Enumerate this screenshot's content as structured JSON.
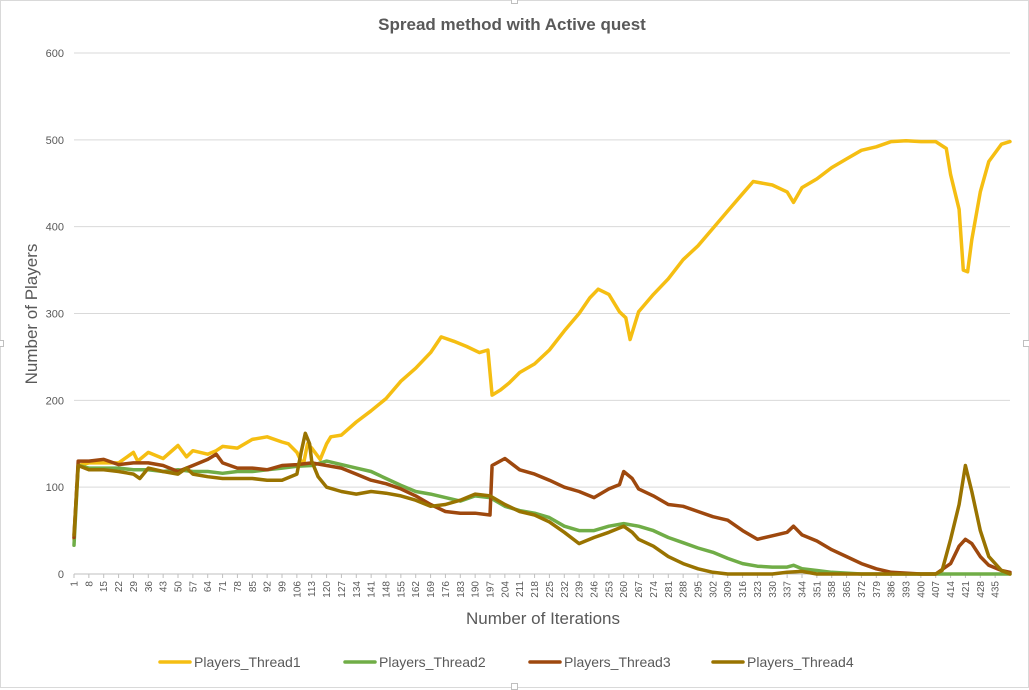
{
  "chart_data": {
    "type": "line",
    "title": "Spread method with Active quest",
    "xlabel": "Number of Iterations",
    "ylabel": "Number of Players",
    "ylim": [
      0,
      600
    ],
    "yticks": [
      0,
      100,
      200,
      300,
      400,
      500,
      600
    ],
    "xlim": [
      1,
      442
    ],
    "xticks": [
      1,
      8,
      15,
      22,
      29,
      36,
      43,
      50,
      57,
      64,
      71,
      78,
      85,
      92,
      99,
      106,
      113,
      120,
      127,
      134,
      141,
      148,
      155,
      162,
      169,
      176,
      183,
      190,
      197,
      204,
      211,
      218,
      225,
      232,
      239,
      246,
      253,
      260,
      267,
      274,
      281,
      288,
      295,
      302,
      309,
      316,
      323,
      330,
      337,
      344,
      351,
      358,
      365,
      372,
      379,
      386,
      393,
      400,
      407,
      414,
      421,
      428,
      435
    ],
    "grid": "horizontal",
    "legend": "bottom",
    "series": [
      {
        "name": "Players_Thread1",
        "color": "#F5BE12",
        "points": [
          [
            1,
            40
          ],
          [
            3,
            125
          ],
          [
            8,
            128
          ],
          [
            22,
            128
          ],
          [
            29,
            140
          ],
          [
            31,
            130
          ],
          [
            36,
            140
          ],
          [
            43,
            133
          ],
          [
            50,
            148
          ],
          [
            54,
            135
          ],
          [
            57,
            142
          ],
          [
            64,
            138
          ],
          [
            68,
            142
          ],
          [
            71,
            147
          ],
          [
            78,
            145
          ],
          [
            85,
            155
          ],
          [
            92,
            158
          ],
          [
            99,
            152
          ],
          [
            102,
            150
          ],
          [
            106,
            140
          ],
          [
            109,
            125
          ],
          [
            111,
            150
          ],
          [
            113,
            145
          ],
          [
            117,
            132
          ],
          [
            120,
            150
          ],
          [
            122,
            158
          ],
          [
            127,
            160
          ],
          [
            134,
            175
          ],
          [
            141,
            188
          ],
          [
            148,
            202
          ],
          [
            155,
            222
          ],
          [
            162,
            237
          ],
          [
            169,
            255
          ],
          [
            174,
            273
          ],
          [
            180,
            268
          ],
          [
            186,
            262
          ],
          [
            192,
            255
          ],
          [
            196,
            258
          ],
          [
            198,
            206
          ],
          [
            202,
            212
          ],
          [
            206,
            220
          ],
          [
            211,
            232
          ],
          [
            218,
            242
          ],
          [
            225,
            258
          ],
          [
            232,
            280
          ],
          [
            239,
            300
          ],
          [
            244,
            318
          ],
          [
            248,
            328
          ],
          [
            253,
            322
          ],
          [
            258,
            302
          ],
          [
            261,
            295
          ],
          [
            263,
            270
          ],
          [
            267,
            302
          ],
          [
            274,
            322
          ],
          [
            281,
            340
          ],
          [
            288,
            362
          ],
          [
            295,
            378
          ],
          [
            302,
            398
          ],
          [
            309,
            418
          ],
          [
            316,
            438
          ],
          [
            321,
            452
          ],
          [
            330,
            448
          ],
          [
            337,
            440
          ],
          [
            340,
            428
          ],
          [
            344,
            445
          ],
          [
            351,
            455
          ],
          [
            358,
            468
          ],
          [
            365,
            478
          ],
          [
            372,
            488
          ],
          [
            379,
            492
          ],
          [
            386,
            498
          ],
          [
            393,
            499
          ],
          [
            400,
            498
          ],
          [
            407,
            498
          ],
          [
            412,
            490
          ],
          [
            414,
            460
          ],
          [
            418,
            420
          ],
          [
            420,
            350
          ],
          [
            422,
            348
          ],
          [
            424,
            385
          ],
          [
            428,
            440
          ],
          [
            432,
            475
          ],
          [
            438,
            495
          ],
          [
            442,
            498
          ]
        ]
      },
      {
        "name": "Players_Thread2",
        "color": "#70AD47",
        "points": [
          [
            1,
            33
          ],
          [
            3,
            125
          ],
          [
            8,
            122
          ],
          [
            15,
            122
          ],
          [
            22,
            122
          ],
          [
            29,
            120
          ],
          [
            36,
            120
          ],
          [
            43,
            118
          ],
          [
            50,
            120
          ],
          [
            57,
            118
          ],
          [
            64,
            118
          ],
          [
            71,
            116
          ],
          [
            78,
            118
          ],
          [
            85,
            118
          ],
          [
            92,
            120
          ],
          [
            99,
            122
          ],
          [
            106,
            124
          ],
          [
            113,
            125
          ],
          [
            120,
            130
          ],
          [
            127,
            126
          ],
          [
            134,
            122
          ],
          [
            141,
            118
          ],
          [
            148,
            110
          ],
          [
            155,
            102
          ],
          [
            162,
            95
          ],
          [
            169,
            92
          ],
          [
            176,
            88
          ],
          [
            183,
            84
          ],
          [
            190,
            90
          ],
          [
            197,
            88
          ],
          [
            204,
            78
          ],
          [
            211,
            73
          ],
          [
            218,
            70
          ],
          [
            225,
            65
          ],
          [
            232,
            55
          ],
          [
            239,
            50
          ],
          [
            246,
            50
          ],
          [
            253,
            55
          ],
          [
            260,
            58
          ],
          [
            267,
            55
          ],
          [
            274,
            50
          ],
          [
            281,
            42
          ],
          [
            288,
            36
          ],
          [
            295,
            30
          ],
          [
            302,
            25
          ],
          [
            309,
            18
          ],
          [
            316,
            12
          ],
          [
            323,
            9
          ],
          [
            330,
            8
          ],
          [
            337,
            8
          ],
          [
            340,
            10
          ],
          [
            344,
            6
          ],
          [
            351,
            4
          ],
          [
            358,
            2
          ],
          [
            365,
            1
          ],
          [
            372,
            0
          ],
          [
            379,
            0
          ],
          [
            386,
            0
          ],
          [
            393,
            0
          ],
          [
            400,
            0
          ],
          [
            407,
            0
          ],
          [
            414,
            0
          ],
          [
            421,
            0
          ],
          [
            428,
            0
          ],
          [
            435,
            0
          ],
          [
            442,
            0
          ]
        ]
      },
      {
        "name": "Players_Thread3",
        "color": "#9E480E",
        "points": [
          [
            1,
            42
          ],
          [
            3,
            130
          ],
          [
            8,
            130
          ],
          [
            15,
            132
          ],
          [
            22,
            126
          ],
          [
            29,
            128
          ],
          [
            36,
            128
          ],
          [
            43,
            125
          ],
          [
            50,
            118
          ],
          [
            57,
            125
          ],
          [
            64,
            132
          ],
          [
            68,
            138
          ],
          [
            71,
            128
          ],
          [
            78,
            122
          ],
          [
            85,
            122
          ],
          [
            92,
            120
          ],
          [
            99,
            125
          ],
          [
            106,
            126
          ],
          [
            113,
            128
          ],
          [
            120,
            125
          ],
          [
            127,
            122
          ],
          [
            134,
            115
          ],
          [
            141,
            108
          ],
          [
            148,
            104
          ],
          [
            155,
            98
          ],
          [
            162,
            90
          ],
          [
            169,
            80
          ],
          [
            176,
            72
          ],
          [
            183,
            70
          ],
          [
            190,
            70
          ],
          [
            197,
            68
          ],
          [
            198,
            125
          ],
          [
            204,
            133
          ],
          [
            211,
            120
          ],
          [
            218,
            115
          ],
          [
            225,
            108
          ],
          [
            232,
            100
          ],
          [
            239,
            95
          ],
          [
            246,
            88
          ],
          [
            253,
            98
          ],
          [
            258,
            103
          ],
          [
            260,
            118
          ],
          [
            264,
            110
          ],
          [
            267,
            98
          ],
          [
            274,
            90
          ],
          [
            281,
            80
          ],
          [
            288,
            78
          ],
          [
            295,
            72
          ],
          [
            302,
            66
          ],
          [
            309,
            62
          ],
          [
            316,
            50
          ],
          [
            323,
            40
          ],
          [
            330,
            44
          ],
          [
            337,
            48
          ],
          [
            340,
            55
          ],
          [
            344,
            45
          ],
          [
            351,
            38
          ],
          [
            358,
            28
          ],
          [
            365,
            20
          ],
          [
            372,
            12
          ],
          [
            379,
            6
          ],
          [
            386,
            2
          ],
          [
            393,
            1
          ],
          [
            400,
            0
          ],
          [
            407,
            0
          ],
          [
            414,
            12
          ],
          [
            418,
            32
          ],
          [
            421,
            40
          ],
          [
            424,
            35
          ],
          [
            428,
            20
          ],
          [
            432,
            10
          ],
          [
            438,
            4
          ],
          [
            442,
            2
          ]
        ]
      },
      {
        "name": "Players_Thread4",
        "color": "#997300",
        "points": [
          [
            1,
            45
          ],
          [
            3,
            125
          ],
          [
            8,
            120
          ],
          [
            15,
            120
          ],
          [
            22,
            118
          ],
          [
            29,
            115
          ],
          [
            32,
            110
          ],
          [
            36,
            122
          ],
          [
            43,
            118
          ],
          [
            50,
            115
          ],
          [
            54,
            122
          ],
          [
            57,
            115
          ],
          [
            64,
            112
          ],
          [
            71,
            110
          ],
          [
            78,
            110
          ],
          [
            85,
            110
          ],
          [
            92,
            108
          ],
          [
            99,
            108
          ],
          [
            106,
            115
          ],
          [
            108,
            140
          ],
          [
            110,
            162
          ],
          [
            112,
            150
          ],
          [
            113,
            130
          ],
          [
            116,
            112
          ],
          [
            120,
            100
          ],
          [
            127,
            95
          ],
          [
            134,
            92
          ],
          [
            141,
            95
          ],
          [
            148,
            93
          ],
          [
            155,
            90
          ],
          [
            162,
            85
          ],
          [
            169,
            78
          ],
          [
            176,
            80
          ],
          [
            183,
            85
          ],
          [
            190,
            92
          ],
          [
            197,
            90
          ],
          [
            204,
            80
          ],
          [
            211,
            72
          ],
          [
            218,
            68
          ],
          [
            225,
            60
          ],
          [
            232,
            48
          ],
          [
            239,
            35
          ],
          [
            246,
            42
          ],
          [
            253,
            48
          ],
          [
            260,
            55
          ],
          [
            264,
            48
          ],
          [
            267,
            40
          ],
          [
            274,
            32
          ],
          [
            281,
            20
          ],
          [
            288,
            12
          ],
          [
            295,
            6
          ],
          [
            302,
            2
          ],
          [
            309,
            0
          ],
          [
            316,
            0
          ],
          [
            323,
            0
          ],
          [
            330,
            0
          ],
          [
            337,
            2
          ],
          [
            344,
            3
          ],
          [
            351,
            0
          ],
          [
            358,
            0
          ],
          [
            365,
            0
          ],
          [
            372,
            0
          ],
          [
            379,
            0
          ],
          [
            386,
            0
          ],
          [
            393,
            0
          ],
          [
            400,
            0
          ],
          [
            407,
            0
          ],
          [
            410,
            4
          ],
          [
            414,
            40
          ],
          [
            418,
            80
          ],
          [
            421,
            125
          ],
          [
            424,
            95
          ],
          [
            428,
            50
          ],
          [
            432,
            20
          ],
          [
            438,
            4
          ],
          [
            442,
            0
          ]
        ]
      }
    ]
  }
}
